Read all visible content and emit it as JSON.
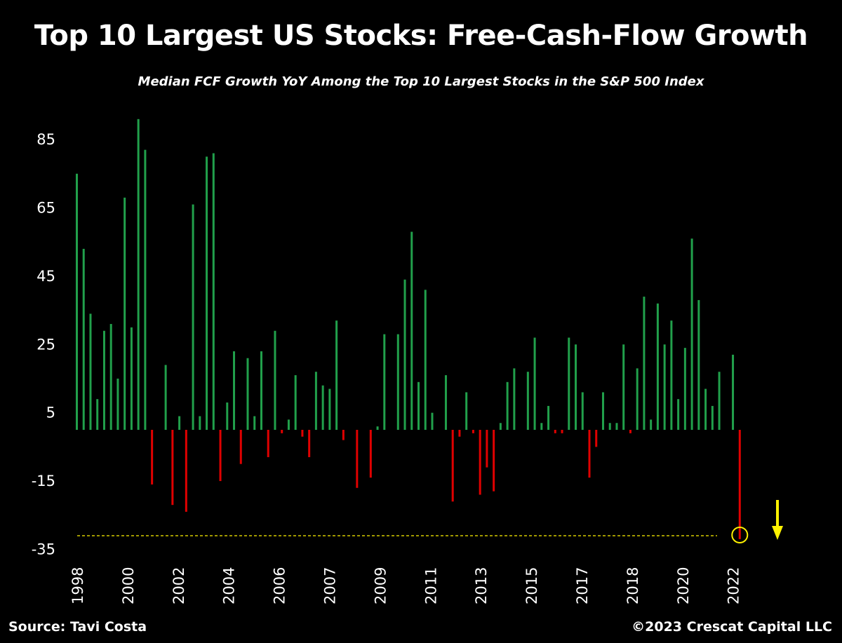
{
  "chart_data": {
    "type": "bar",
    "title": "Top 10 Largest US Stocks: Free-Cash-Flow Growth",
    "subtitle": "Median FCF Growth YoY Among the Top 10 Largest Stocks in the S&P 500 Index",
    "xlabel": "",
    "ylabel": "",
    "ylim": [
      -35,
      95
    ],
    "y_ticks": [
      85,
      65,
      45,
      25,
      5,
      -15,
      -35
    ],
    "x_tick_labels": [
      "1998",
      "2000",
      "2002",
      "2004",
      "2006",
      "2007",
      "2009",
      "2011",
      "2013",
      "2015",
      "2017",
      "2018",
      "2020",
      "2022"
    ],
    "frequency": "quarterly",
    "start_period": "1998 Q1",
    "grid": false,
    "legend": "none",
    "positive_color": "#21A04B",
    "negative_color": "#E00000",
    "values": [
      75,
      53,
      34,
      9,
      29,
      31,
      15,
      68,
      30,
      91,
      82,
      -16,
      0,
      19,
      -22,
      4,
      -24,
      66,
      4,
      80,
      81,
      -15,
      8,
      23,
      -10,
      21,
      4,
      23,
      -8,
      29,
      -1,
      3,
      16,
      -2,
      -8,
      17,
      13,
      12,
      32,
      -3,
      0,
      -17,
      0,
      -14,
      1,
      28,
      0,
      28,
      44,
      58,
      14,
      41,
      5,
      0,
      16,
      -21,
      -2,
      11,
      -1,
      -19,
      -11,
      -18,
      2,
      14,
      18,
      0,
      17,
      27,
      2,
      7,
      -1,
      -1,
      27,
      25,
      11,
      -14,
      -5,
      11,
      2,
      2,
      25,
      -1,
      18,
      39,
      3,
      37,
      25,
      32,
      9,
      24,
      56,
      38,
      12,
      7,
      17,
      0,
      22,
      -32
    ],
    "annotations": {
      "reference_line_value": -31,
      "highlight": "last bar circled",
      "arrow": "down",
      "reference_line_color": "#FFF200",
      "arrow_color": "#FFF200"
    }
  },
  "footer": {
    "source": "Source: Tavi Costa",
    "copyright": "©2023 Crescat Capital LLC"
  }
}
